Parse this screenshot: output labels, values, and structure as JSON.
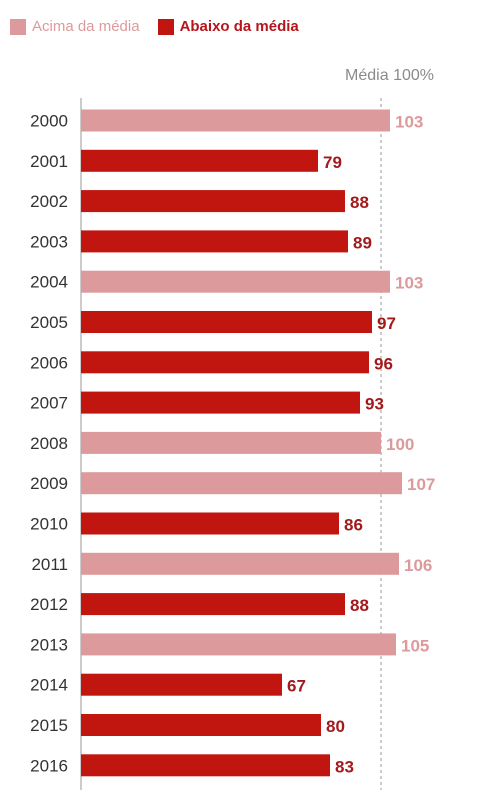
{
  "colors": {
    "above": "#dd9a9c",
    "below": "#c0160f",
    "above_label": "#dd9a9c",
    "below_label": "#a31a1c",
    "text": "#333333",
    "axis": "#999999"
  },
  "legend": {
    "above_label": "Acima da média",
    "below_label": "Abaixo da média"
  },
  "reference_label": "Média 100%",
  "chart_data": {
    "type": "bar",
    "orientation": "horizontal",
    "categories": [
      "2000",
      "2001",
      "2002",
      "2003",
      "2004",
      "2005",
      "2006",
      "2007",
      "2008",
      "2009",
      "2010",
      "2011",
      "2012",
      "2013",
      "2014",
      "2015",
      "2016"
    ],
    "values": [
      103,
      79,
      88,
      89,
      103,
      97,
      96,
      93,
      100,
      107,
      86,
      106,
      88,
      105,
      67,
      80,
      83
    ],
    "reference_value": 100,
    "xlim": [
      0,
      110
    ],
    "legend_position": "top-left",
    "series": [
      {
        "name": "Acima da média",
        "rule": "value >= 100"
      },
      {
        "name": "Abaixo da média",
        "rule": "value < 100"
      }
    ]
  }
}
